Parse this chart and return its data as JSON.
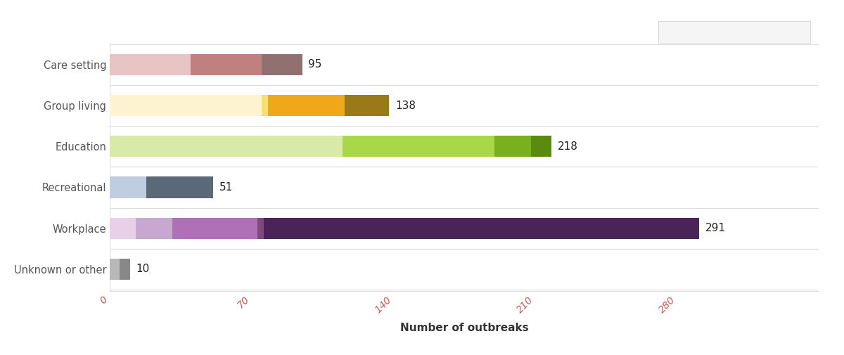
{
  "categories": [
    "Care setting",
    "Group living",
    "Education",
    "Recreational",
    "Workplace",
    "Unknown or other"
  ],
  "totals": [
    95,
    138,
    218,
    51,
    291,
    10
  ],
  "segments": {
    "Care setting": [
      {
        "value": 40,
        "color": "#e8c4c4"
      },
      {
        "value": 35,
        "color": "#c08080"
      },
      {
        "value": 20,
        "color": "#907070"
      }
    ],
    "Group living": [
      {
        "value": 75,
        "color": "#fef3d0"
      },
      {
        "value": 3,
        "color": "#f8e070"
      },
      {
        "value": 38,
        "color": "#f0a818"
      },
      {
        "value": 22,
        "color": "#9a7a18"
      }
    ],
    "Education": [
      {
        "value": 115,
        "color": "#d8eaa8"
      },
      {
        "value": 75,
        "color": "#a8d848"
      },
      {
        "value": 18,
        "color": "#78b020"
      },
      {
        "value": 10,
        "color": "#5a8a10"
      }
    ],
    "Recreational": [
      {
        "value": 18,
        "color": "#c0cce0"
      },
      {
        "value": 33,
        "color": "#5a6878"
      }
    ],
    "Workplace": [
      {
        "value": 13,
        "color": "#e8d0e8"
      },
      {
        "value": 18,
        "color": "#c8a8d0"
      },
      {
        "value": 42,
        "color": "#b070b8"
      },
      {
        "value": 3,
        "color": "#804880"
      },
      {
        "value": 215,
        "color": "#4a2458"
      }
    ],
    "Unknown or other": [
      {
        "value": 5,
        "color": "#b8b8b8"
      },
      {
        "value": 5,
        "color": "#888888"
      }
    ]
  },
  "xlabel": "Number of outbreaks",
  "xlim": [
    0,
    350
  ],
  "xticks": [
    0,
    70,
    140,
    210,
    280
  ],
  "xtick_color": "#cc5555",
  "background_color": "#ffffff",
  "label_color": "#555555",
  "label_fontsize": 10.5,
  "xlabel_fontsize": 11,
  "value_label_fontsize": 11,
  "bar_height": 0.52,
  "figure_width": 12.0,
  "figure_height": 5.05,
  "separator_color": "#dddddd",
  "legend_box": true
}
